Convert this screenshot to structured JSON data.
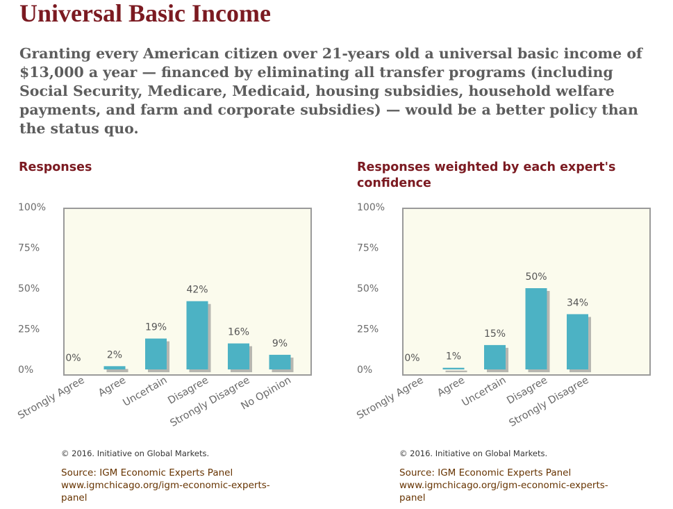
{
  "page": {
    "title": "Universal Basic Income",
    "question": "Granting every American citizen over 21-years old a universal basic income of $13,000 a year — financed by eliminating all transfer programs (including Social Security, Medicare, Medicaid, housing subsidies, household welfare payments, and farm and corporate subsidies) — would be a better policy than the status quo."
  },
  "colors": {
    "bar": "#4cb2c4",
    "bar_shadow": "#7f7f7f",
    "plot_bg": "#fbfbed",
    "frame": "#9a9a9a",
    "heading": "#7b1a21"
  },
  "chart_data": [
    {
      "type": "bar",
      "title": "Responses",
      "categories": [
        "Strongly Agree",
        "Agree",
        "Uncertain",
        "Disagree",
        "Strongly Disagree",
        "No Opinion"
      ],
      "values": [
        0,
        2,
        19,
        42,
        16,
        9
      ],
      "value_labels": [
        "0%",
        "2%",
        "19%",
        "42%",
        "16%",
        "9%"
      ],
      "yticks": [
        "100%",
        "75%",
        "50%",
        "25%",
        "0%"
      ],
      "ylim": [
        0,
        100
      ],
      "grid": false,
      "legend": "none",
      "copyright": "© 2016. Initiative on Global Markets.",
      "source_lines": [
        "Source: IGM Economic Experts Panel",
        "www.igmchicago.org/igm-economic-experts-",
        "panel"
      ]
    },
    {
      "type": "bar",
      "title_lines": [
        "Responses weighted by each expert's",
        "confidence"
      ],
      "categories": [
        "Strongly Agree",
        "Agree",
        "Uncertain",
        "Disagree",
        "Strongly Disagree"
      ],
      "values": [
        0,
        1,
        15,
        50,
        34
      ],
      "value_labels": [
        "0%",
        "1%",
        "15%",
        "50%",
        "34%"
      ],
      "yticks": [
        "100%",
        "75%",
        "50%",
        "25%",
        "0%"
      ],
      "ylim": [
        0,
        100
      ],
      "grid": false,
      "legend": "none",
      "copyright": "© 2016. Initiative on Global Markets.",
      "source_lines": [
        "Source: IGM Economic Experts Panel",
        "www.igmchicago.org/igm-economic-experts-",
        "panel"
      ]
    }
  ]
}
